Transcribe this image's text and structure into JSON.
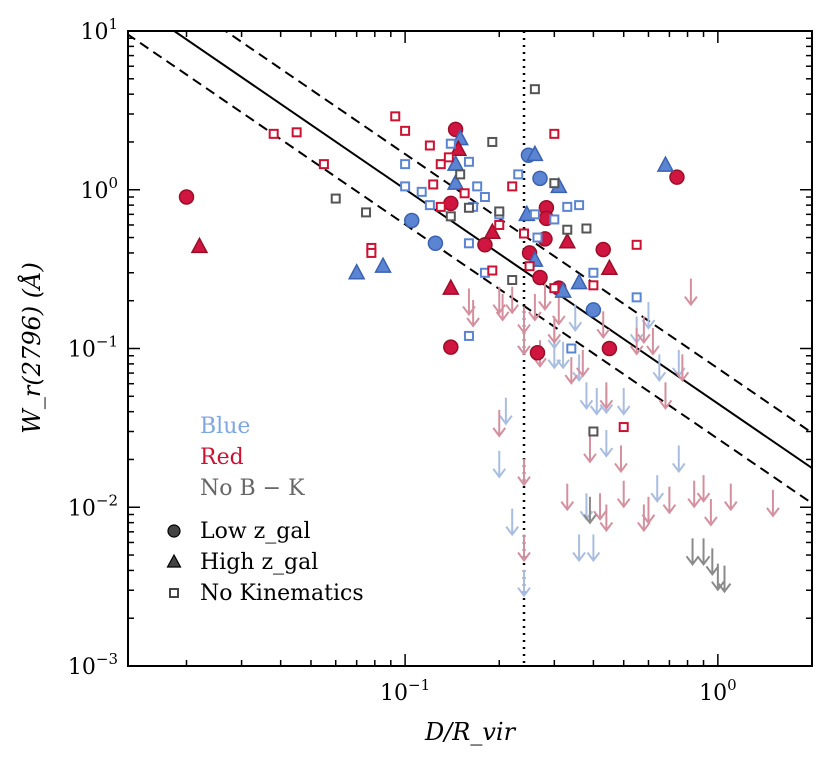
{
  "chart_data": {
    "type": "scatter",
    "title": "",
    "xlabel": "D/R_vir",
    "ylabel": "W_r(2796) (Å)",
    "xscale": "log",
    "yscale": "log",
    "xlim": [
      0.013,
      2.0
    ],
    "ylim": [
      0.001,
      10
    ],
    "x_ticks": [
      {
        "value": 0.1,
        "base": "10",
        "exp": "−1"
      },
      {
        "value": 1.0,
        "base": "10",
        "exp": "0"
      }
    ],
    "y_ticks": [
      {
        "value": 0.001,
        "base": "10",
        "exp": "−3"
      },
      {
        "value": 0.01,
        "base": "10",
        "exp": "−2"
      },
      {
        "value": 0.1,
        "base": "10",
        "exp": "−1"
      },
      {
        "value": 1,
        "base": "10",
        "exp": "0"
      },
      {
        "value": 10,
        "base": "10",
        "exp": "1"
      }
    ],
    "colors": {
      "blue": "#5b85d2",
      "red": "#cc1133",
      "gray": "#555555",
      "blue_limit": "#a9bde0",
      "red_limit": "#d4909f",
      "gray_limit": "#8a8a8a"
    },
    "legend": {
      "placement": "lower-left",
      "color_entries": [
        {
          "label": "Blue",
          "color": "#7ea6e0"
        },
        {
          "label": "Red",
          "color": "#cc1133"
        },
        {
          "label": "No B − K",
          "color": "#666666"
        }
      ],
      "marker_entries": [
        {
          "label": "Low z_gal",
          "marker": "circle"
        },
        {
          "label": "High z_gal",
          "marker": "triangle"
        },
        {
          "label": "No Kinematics",
          "marker": "square"
        }
      ]
    },
    "vline": {
      "x": 0.24,
      "style": "dotted"
    },
    "fit_line": {
      "slope": -1.35,
      "intercept_at_x1": 0.045
    },
    "fit_band": {
      "upper_at_x1": 0.075,
      "lower_at_x1": 0.027
    },
    "series": [
      {
        "name": "Low z_gal",
        "color_class": "blue",
        "marker": "circle",
        "points": [
          [
            0.105,
            0.64
          ],
          [
            0.125,
            0.46
          ],
          [
            0.248,
            1.65
          ],
          [
            0.27,
            1.18
          ],
          [
            0.4,
            0.175
          ]
        ]
      },
      {
        "name": "Low z_gal",
        "color_class": "red",
        "marker": "circle",
        "points": [
          [
            0.02,
            0.9
          ],
          [
            0.145,
            2.4
          ],
          [
            0.14,
            0.82
          ],
          [
            0.18,
            0.45
          ],
          [
            0.25,
            0.4
          ],
          [
            0.27,
            0.28
          ],
          [
            0.28,
            0.49
          ],
          [
            0.283,
            0.77
          ],
          [
            0.283,
            0.66
          ],
          [
            0.31,
            0.24
          ],
          [
            0.43,
            0.42
          ],
          [
            0.45,
            0.1
          ],
          [
            0.74,
            1.2
          ],
          [
            0.14,
            0.102
          ],
          [
            0.265,
            0.094
          ]
        ]
      },
      {
        "name": "High z_gal",
        "color_class": "blue",
        "marker": "triangle",
        "points": [
          [
            0.07,
            0.3
          ],
          [
            0.085,
            0.33
          ],
          [
            0.145,
            1.45
          ],
          [
            0.145,
            1.1
          ],
          [
            0.15,
            2.1
          ],
          [
            0.245,
            0.7
          ],
          [
            0.26,
            1.67
          ],
          [
            0.26,
            0.36
          ],
          [
            0.31,
            1.05
          ],
          [
            0.32,
            0.23
          ],
          [
            0.36,
            0.26
          ],
          [
            0.68,
            1.43
          ]
        ]
      },
      {
        "name": "High z_gal",
        "color_class": "red",
        "marker": "triangle",
        "points": [
          [
            0.022,
            0.44
          ],
          [
            0.148,
            1.8
          ],
          [
            0.14,
            0.24
          ],
          [
            0.19,
            0.54
          ],
          [
            0.33,
            0.47
          ],
          [
            0.45,
            0.32
          ]
        ]
      },
      {
        "name": "No Kinematics",
        "color_class": "blue",
        "marker": "square",
        "points": [
          [
            0.1,
            1.45
          ],
          [
            0.1,
            1.05
          ],
          [
            0.113,
            0.97
          ],
          [
            0.12,
            0.8
          ],
          [
            0.14,
            1.95
          ],
          [
            0.16,
            1.5
          ],
          [
            0.17,
            1.05
          ],
          [
            0.165,
            0.78
          ],
          [
            0.18,
            0.9
          ],
          [
            0.18,
            0.3
          ],
          [
            0.16,
            0.46
          ],
          [
            0.16,
            0.12
          ],
          [
            0.2,
            0.7
          ],
          [
            0.23,
            1.25
          ],
          [
            0.26,
            0.7
          ],
          [
            0.265,
            0.5
          ],
          [
            0.3,
            0.65
          ],
          [
            0.33,
            0.78
          ],
          [
            0.34,
            0.1
          ],
          [
            0.4,
            0.3
          ],
          [
            0.55,
            0.21
          ],
          [
            0.36,
            0.8
          ]
        ]
      },
      {
        "name": "No Kinematics",
        "color_class": "red",
        "marker": "square",
        "points": [
          [
            0.038,
            2.25
          ],
          [
            0.045,
            2.3
          ],
          [
            0.055,
            1.45
          ],
          [
            0.078,
            0.43
          ],
          [
            0.078,
            0.4
          ],
          [
            0.093,
            2.9
          ],
          [
            0.1,
            2.35
          ],
          [
            0.12,
            1.9
          ],
          [
            0.13,
            1.45
          ],
          [
            0.138,
            1.6
          ],
          [
            0.123,
            1.08
          ],
          [
            0.13,
            0.78
          ],
          [
            0.155,
            0.95
          ],
          [
            0.19,
            0.31
          ],
          [
            0.2,
            0.6
          ],
          [
            0.22,
            1.05
          ],
          [
            0.24,
            0.53
          ],
          [
            0.25,
            0.33
          ],
          [
            0.3,
            2.25
          ],
          [
            0.4,
            0.25
          ],
          [
            0.55,
            0.45
          ],
          [
            0.5,
            0.032
          ],
          [
            0.3,
            0.24
          ]
        ]
      },
      {
        "name": "No Kinematics",
        "color_class": "gray",
        "marker": "square",
        "points": [
          [
            0.06,
            0.88
          ],
          [
            0.075,
            0.72
          ],
          [
            0.14,
            0.68
          ],
          [
            0.15,
            1.25
          ],
          [
            0.16,
            0.77
          ],
          [
            0.19,
            2.0
          ],
          [
            0.2,
            0.73
          ],
          [
            0.22,
            0.27
          ],
          [
            0.26,
            4.3
          ],
          [
            0.3,
            1.1
          ],
          [
            0.33,
            0.56
          ],
          [
            0.38,
            0.57
          ],
          [
            0.4,
            0.03
          ]
        ]
      }
    ],
    "upper_limits": {
      "blue": [
        [
          0.24,
          0.0033
        ],
        [
          0.3,
          0.12
        ],
        [
          0.3,
          0.09
        ],
        [
          0.32,
          0.09
        ],
        [
          0.35,
          0.155
        ],
        [
          0.36,
          0.075
        ],
        [
          0.38,
          0.05
        ],
        [
          0.36,
          0.0055
        ],
        [
          0.38,
          0.01
        ],
        [
          0.41,
          0.046
        ],
        [
          0.44,
          0.025
        ],
        [
          0.44,
          0.047
        ],
        [
          0.4,
          0.0055
        ],
        [
          0.5,
          0.046
        ],
        [
          0.55,
          0.13
        ],
        [
          0.6,
          0.16
        ],
        [
          0.65,
          0.075
        ],
        [
          0.75,
          0.08
        ],
        [
          0.75,
          0.02
        ],
        [
          0.21,
          0.04
        ],
        [
          0.24,
          0.11
        ],
        [
          0.2,
          0.0185
        ],
        [
          0.22,
          0.008
        ],
        [
          0.64,
          0.013
        ]
      ],
      "red": [
        [
          0.16,
          0.195
        ],
        [
          0.165,
          0.165
        ],
        [
          0.2,
          0.2
        ],
        [
          0.205,
          0.18
        ],
        [
          0.22,
          0.2
        ],
        [
          0.24,
          0.15
        ],
        [
          0.24,
          0.11
        ],
        [
          0.26,
          0.18
        ],
        [
          0.28,
          0.21
        ],
        [
          0.27,
          0.092
        ],
        [
          0.3,
          0.13
        ],
        [
          0.31,
          0.17
        ],
        [
          0.34,
          0.072
        ],
        [
          0.43,
          0.14
        ],
        [
          0.37,
          0.08
        ],
        [
          0.39,
          0.023
        ],
        [
          0.44,
          0.05
        ],
        [
          0.49,
          0.02
        ],
        [
          0.5,
          0.012
        ],
        [
          0.55,
          0.11
        ],
        [
          0.58,
          0.13
        ],
        [
          0.62,
          0.11
        ],
        [
          0.68,
          0.05
        ],
        [
          0.77,
          0.075
        ],
        [
          0.82,
          0.225
        ],
        [
          0.84,
          0.012
        ],
        [
          0.9,
          0.013
        ],
        [
          0.95,
          0.0092
        ],
        [
          1.1,
          0.0115
        ],
        [
          1.5,
          0.0105
        ],
        [
          0.42,
          0.01
        ],
        [
          0.58,
          0.0085
        ],
        [
          0.44,
          0.0085
        ],
        [
          0.24,
          0.0055
        ],
        [
          0.6,
          0.0095
        ],
        [
          0.7,
          0.011
        ],
        [
          0.33,
          0.0115
        ],
        [
          0.24,
          0.0165
        ],
        [
          0.2,
          0.0335
        ]
      ],
      "gray": [
        [
          0.39,
          0.0095
        ],
        [
          0.9,
          0.0052
        ],
        [
          0.83,
          0.0052
        ],
        [
          0.96,
          0.0045
        ],
        [
          1.0,
          0.0036
        ],
        [
          1.05,
          0.0035
        ]
      ]
    }
  }
}
